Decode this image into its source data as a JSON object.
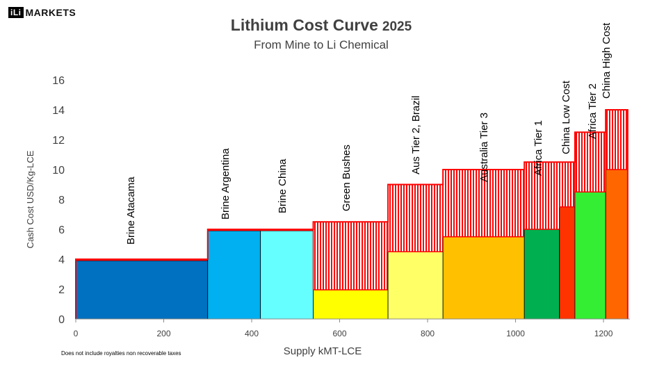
{
  "logo": {
    "mark": "iLi",
    "text": "MARKETS"
  },
  "chart_data": {
    "type": "bar",
    "title": "Lithium Cost Curve",
    "title_year": "2025",
    "subtitle": "From Mine to Li Chemical",
    "xlabel": "Supply kMT-LCE",
    "ylabel": "Cash Cost USD/Kg-LCE",
    "footnote": "Does not include royalties non recoverable taxes",
    "xlim": [
      0,
      1260
    ],
    "ylim": [
      0,
      16
    ],
    "x_ticks": [
      0,
      200,
      400,
      600,
      800,
      1000,
      1200
    ],
    "y_ticks": [
      0,
      2,
      4,
      6,
      8,
      10,
      12,
      14,
      16
    ],
    "grid": false,
    "segments": [
      {
        "name": "Brine Atacama",
        "x_start": 0,
        "x_end": 300,
        "base_cost": 3.9,
        "total_cost": 4.0,
        "color": "#0070C0"
      },
      {
        "name": "Brine Argentina",
        "x_start": 300,
        "x_end": 420,
        "base_cost": 5.9,
        "total_cost": 6.0,
        "color": "#00B0F0"
      },
      {
        "name": "Brine China",
        "x_start": 420,
        "x_end": 540,
        "base_cost": 5.9,
        "total_cost": 6.0,
        "color": "#66FFFF"
      },
      {
        "name": "Green Bushes",
        "x_start": 540,
        "x_end": 710,
        "base_cost": 1.95,
        "total_cost": 6.5,
        "color": "#FFFF00"
      },
      {
        "name": "Aus Tier 2, Brazil",
        "x_start": 710,
        "x_end": 835,
        "base_cost": 4.5,
        "total_cost": 9.0,
        "color": "#FFFF66"
      },
      {
        "name": "Australia Tier 3",
        "x_start": 835,
        "x_end": 1020,
        "base_cost": 5.5,
        "total_cost": 10.0,
        "color": "#FFC000"
      },
      {
        "name": "Africa Tier 1",
        "x_start": 1020,
        "x_end": 1100,
        "base_cost": 6.0,
        "total_cost": 10.5,
        "color": "#00B050"
      },
      {
        "name": "China Low Cost",
        "x_start": 1100,
        "x_end": 1135,
        "base_cost": 7.5,
        "total_cost": 10.5,
        "color": "#FF3300"
      },
      {
        "name": "Africa Tier 2",
        "x_start": 1135,
        "x_end": 1205,
        "base_cost": 8.5,
        "total_cost": 12.5,
        "color": "#33EE33"
      },
      {
        "name": "China High Cost",
        "x_start": 1205,
        "x_end": 1255,
        "base_cost": 10.0,
        "total_cost": 14.0,
        "color": "#FF6600"
      }
    ],
    "upper_layer_style": "red vertical hatch"
  }
}
